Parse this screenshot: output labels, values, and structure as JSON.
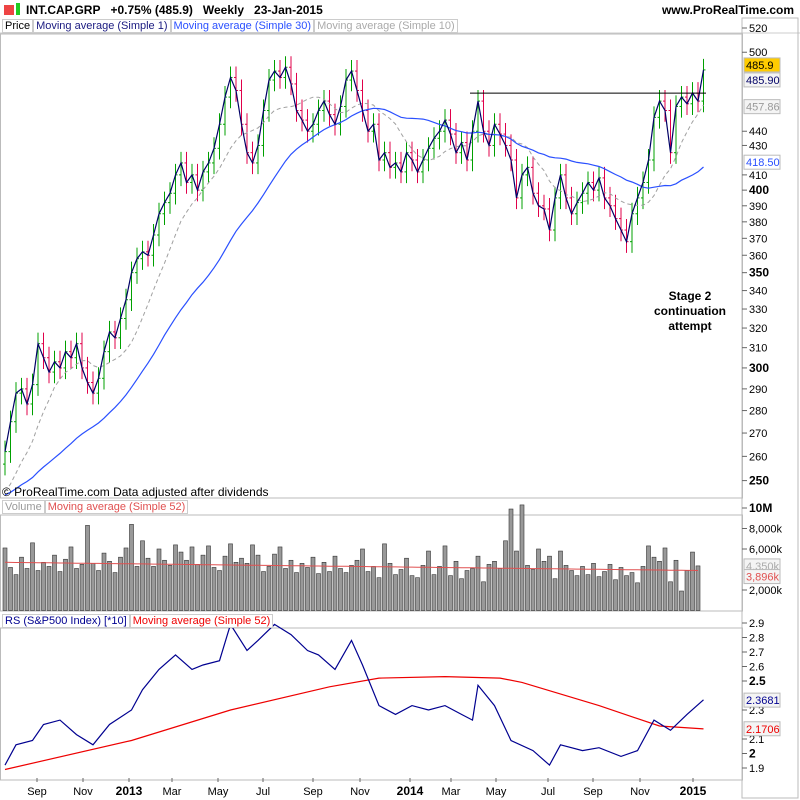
{
  "header": {
    "symbol": "INT.CAP.GRP",
    "change": "+0.75% (485.9)",
    "period": "Weekly",
    "date": "23-Jan-2015",
    "site": "www.ProRealTime.com"
  },
  "legend_price": {
    "price": "Price",
    "ma1": "Moving average (Simple 1)",
    "ma30": "Moving average (Simple 30)",
    "ma10": "Moving average (Simple 10)"
  },
  "copyright": "© ProRealTime.com  Data adjusted after dividends",
  "legend_volume": {
    "volume": "Volume",
    "ma52": "Moving average (Simple 52)"
  },
  "legend_rs": {
    "rs": "RS (S&P500 Index) [*10]",
    "ma52": "Moving average (Simple 52)"
  },
  "annotation": [
    "Stage 2",
    "continuation",
    "attempt"
  ],
  "colors": {
    "up": "#00a000",
    "down": "#e0004a",
    "ma1": "#000066",
    "ma30": "#2a50ff",
    "ma10": "#a0a0a0",
    "vol_ma": "#e05050",
    "rs": "#000090",
    "rs_ma": "#ee0000",
    "last_badge": "#ffcc00"
  },
  "chart_data": [
    {
      "type": "line",
      "title": "Price",
      "scale": "log",
      "ylim": [
        245,
        530
      ],
      "yticks": [
        "520",
        "500",
        "440",
        "430",
        "410",
        "400",
        "390",
        "380",
        "370",
        "360",
        "350",
        "340",
        "330",
        "320",
        "310",
        "300",
        "290",
        "280",
        "270",
        "260",
        "250"
      ],
      "xticks": [
        "Sep",
        "Nov",
        "2013",
        "Mar",
        "May",
        "Jul",
        "Sep",
        "Nov",
        "2014",
        "Mar",
        "May",
        "Jul",
        "Sep",
        "Nov",
        "2015"
      ],
      "resistance": 468,
      "badges": {
        "last": "485.9",
        "ma1": "485.90",
        "ma10": "457.86",
        "ma30": "418.50"
      },
      "closes": [
        262,
        275,
        288,
        290,
        283,
        292,
        312,
        305,
        298,
        303,
        300,
        308,
        305,
        312,
        300,
        293,
        288,
        295,
        308,
        318,
        315,
        325,
        335,
        350,
        358,
        362,
        360,
        372,
        385,
        392,
        398,
        410,
        418,
        405,
        410,
        400,
        412,
        418,
        428,
        445,
        465,
        480,
        470,
        445,
        425,
        418,
        430,
        455,
        478,
        485,
        480,
        488,
        475,
        455,
        448,
        440,
        445,
        455,
        462,
        452,
        445,
        458,
        478,
        485,
        470,
        455,
        440,
        445,
        420,
        425,
        415,
        418,
        412,
        425,
        420,
        412,
        420,
        428,
        435,
        440,
        448,
        438,
        425,
        432,
        420,
        440,
        462,
        440,
        430,
        445,
        438,
        430,
        420,
        395,
        410,
        415,
        398,
        390,
        388,
        375,
        395,
        410,
        395,
        385,
        392,
        398,
        405,
        400,
        408,
        395,
        390,
        382,
        375,
        368,
        385,
        395,
        405,
        420,
        450,
        462,
        455,
        425,
        458,
        465,
        460,
        468,
        462,
        485.9
      ]
    },
    {
      "type": "bar",
      "title": "Volume",
      "ylim": [
        0,
        10300
      ],
      "yticks": [
        "10M",
        "8,000k",
        "6,000k",
        "2,000k"
      ],
      "badges": {
        "volume": "4,350k",
        "ma52": "3,896k"
      },
      "values": [
        6100,
        4200,
        3500,
        5200,
        4100,
        6600,
        3900,
        4700,
        4300,
        5400,
        3800,
        5000,
        6200,
        4100,
        4500,
        8300,
        4600,
        3900,
        5600,
        4800,
        3700,
        5200,
        6100,
        8400,
        4300,
        6800,
        5100,
        4300,
        6000,
        4900,
        4400,
        6400,
        5700,
        4900,
        6200,
        4500,
        5400,
        6300,
        4200,
        3900,
        5300,
        6500,
        4700,
        5100,
        4600,
        6400,
        5400,
        3800,
        4300,
        5500,
        6200,
        4100,
        4900,
        3700,
        4600,
        4200,
        5200,
        3600,
        4700,
        3800,
        5300,
        4100,
        3700,
        4400,
        4900,
        6000,
        3800,
        4300,
        3200,
        6500,
        4600,
        3500,
        4000,
        5100,
        3400,
        3200,
        4400,
        5800,
        3500,
        4300,
        6300,
        3400,
        4800,
        3100,
        3900,
        4100,
        5300,
        2800,
        4500,
        4800,
        4100,
        6800,
        9900,
        5800,
        10300,
        4400,
        4000,
        6000,
        4800,
        5300,
        3100,
        5800,
        4400,
        3900,
        3400,
        4300,
        3500,
        4600,
        3300,
        3800,
        4500,
        3000,
        4200,
        3400,
        3700,
        2700,
        4300,
        6300,
        5200,
        4800,
        6100,
        2800,
        4900,
        1900,
        3900,
        5700,
        4350
      ]
    },
    {
      "type": "line",
      "title": "RS (S&P500 Index) [*10]",
      "ylim": [
        1.85,
        2.95
      ],
      "yticks": [
        "2.9",
        "2.8",
        "2.7",
        "2.6",
        "2.5",
        "2.3",
        "2.1",
        "2",
        "1.9"
      ],
      "badges": {
        "rs": "2.3681",
        "ma52": "2.1706"
      },
      "rs_series": [
        [
          0,
          1.92
        ],
        [
          2,
          2.06
        ],
        [
          5,
          2.09
        ],
        [
          7,
          2.2
        ],
        [
          10,
          2.23
        ],
        [
          13,
          2.13
        ],
        [
          16,
          2.06
        ],
        [
          19,
          2.2
        ],
        [
          23,
          2.3
        ],
        [
          25,
          2.44
        ],
        [
          28,
          2.58
        ],
        [
          31,
          2.68
        ],
        [
          34,
          2.58
        ],
        [
          36,
          2.61
        ],
        [
          39,
          2.64
        ],
        [
          41,
          2.89
        ],
        [
          44,
          2.71
        ],
        [
          46,
          2.78
        ],
        [
          49,
          2.89
        ],
        [
          52,
          2.82
        ],
        [
          55,
          2.71
        ],
        [
          57,
          2.68
        ],
        [
          60,
          2.58
        ],
        [
          63,
          2.78
        ],
        [
          65,
          2.61
        ],
        [
          68,
          2.33
        ],
        [
          71,
          2.27
        ],
        [
          74,
          2.33
        ],
        [
          77,
          2.3
        ],
        [
          80,
          2.33
        ],
        [
          83,
          2.27
        ],
        [
          85,
          2.23
        ],
        [
          86,
          2.47
        ],
        [
          89,
          2.33
        ],
        [
          92,
          2.09
        ],
        [
          96,
          2.02
        ],
        [
          99,
          1.92
        ],
        [
          101,
          2.06
        ],
        [
          105,
          2.02
        ],
        [
          108,
          2.04
        ],
        [
          112,
          1.98
        ],
        [
          115,
          2.02
        ],
        [
          118,
          2.23
        ],
        [
          121,
          2.16
        ],
        [
          124,
          2.27
        ],
        [
          127,
          2.37
        ]
      ],
      "ma_series": [
        [
          0,
          1.89
        ],
        [
          23,
          2.09
        ],
        [
          41,
          2.3
        ],
        [
          59,
          2.46
        ],
        [
          68,
          2.52
        ],
        [
          80,
          2.53
        ],
        [
          90,
          2.52
        ],
        [
          94,
          2.49
        ],
        [
          108,
          2.33
        ],
        [
          119,
          2.19
        ],
        [
          127,
          2.17
        ]
      ]
    }
  ]
}
